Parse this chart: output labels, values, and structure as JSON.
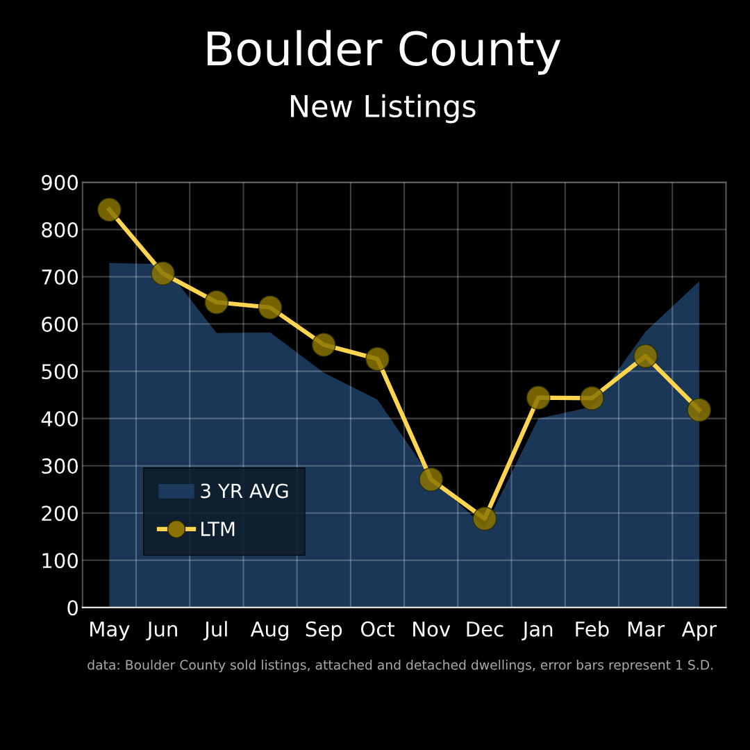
{
  "chart_data": {
    "type": "line",
    "title": "Boulder County",
    "subtitle": "New Listings",
    "categories": [
      "May",
      "Jun",
      "Jul",
      "Aug",
      "Sep",
      "Oct",
      "Nov",
      "Dec",
      "Jan",
      "Feb",
      "Mar",
      "Apr"
    ],
    "series": [
      {
        "name": "3 YR AVG",
        "type": "area",
        "color": "#1b3a5c",
        "values": [
          729,
          727,
          581,
          582,
          497,
          440,
          275,
          169,
          400,
          425,
          584,
          690
        ]
      },
      {
        "name": "LTM",
        "color": "#ffd54f",
        "marker": "circle",
        "values": [
          842,
          707,
          646,
          635,
          556,
          526,
          271,
          188,
          444,
          443,
          532,
          418
        ]
      }
    ],
    "ylim": [
      0,
      900
    ],
    "yticks": [
      0,
      100,
      200,
      300,
      400,
      500,
      600,
      700,
      800,
      900
    ],
    "grid": true,
    "legend": "lower left",
    "line_style": "solid",
    "annotations": [
      "data: Boulder County sold listings, attached and detached dwellings, error bars represent 1 S.D."
    ]
  }
}
